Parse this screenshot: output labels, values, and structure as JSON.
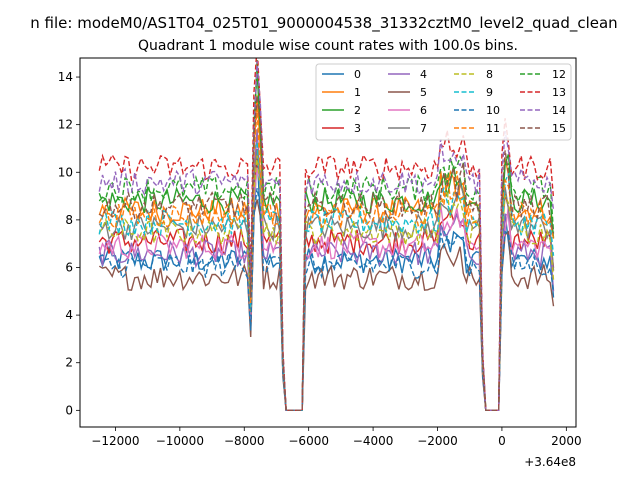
{
  "chart_data": {
    "type": "line",
    "suptitle": "n file: modeM0/AS1T04_025T01_9000004538_31332cztM0_level2_quad_clean",
    "title": "Quadrant 1 module wise count rates with 100.0s bins.",
    "xlabel": "",
    "ylabel": "",
    "x_offset_label": "+3.64e8",
    "xlim": [
      -13100,
      2300
    ],
    "ylim": [
      -0.7,
      14.8
    ],
    "x_ticks": [
      -12000,
      -10000,
      -8000,
      -6000,
      -4000,
      -2000,
      0,
      2000
    ],
    "x_tick_labels": [
      "−12000",
      "−10000",
      "−8000",
      "−6000",
      "−4000",
      "−2000",
      "0",
      "2000"
    ],
    "y_ticks": [
      0,
      2,
      4,
      6,
      8,
      10,
      12,
      14
    ],
    "y_tick_labels": [
      "0",
      "2",
      "4",
      "6",
      "8",
      "10",
      "12",
      "14"
    ],
    "bin_width_s": 100,
    "x_start": -12500,
    "x_end": 1600,
    "gaps": [
      [
        -6700,
        -6200
      ],
      [
        -500,
        -100
      ]
    ],
    "spike_x": [
      -7700,
      -7500
    ],
    "legend_position": "top-right",
    "legend_columns": 4,
    "series": [
      {
        "name": "0",
        "color": "#1f77b4",
        "style": "solid",
        "level": 6.3
      },
      {
        "name": "1",
        "color": "#ff7f0e",
        "style": "solid",
        "level": 8.4
      },
      {
        "name": "2",
        "color": "#2ca02c",
        "style": "solid",
        "level": 8.8
      },
      {
        "name": "3",
        "color": "#d62728",
        "style": "solid",
        "level": 7.1
      },
      {
        "name": "4",
        "color": "#9467bd",
        "style": "solid",
        "level": 6.6
      },
      {
        "name": "5",
        "color": "#8c564b",
        "style": "solid",
        "level": 5.6
      },
      {
        "name": "6",
        "color": "#e377c2",
        "style": "solid",
        "level": 6.9
      },
      {
        "name": "7",
        "color": "#7f7f7f",
        "style": "solid",
        "level": 7.7
      },
      {
        "name": "8",
        "color": "#bcbd22",
        "style": "dashed",
        "level": 7.5
      },
      {
        "name": "9",
        "color": "#17becf",
        "style": "dashed",
        "level": 7.9
      },
      {
        "name": "10",
        "color": "#1f77b4",
        "style": "dashed",
        "level": 6.1
      },
      {
        "name": "11",
        "color": "#ff7f0e",
        "style": "dashed",
        "level": 8.2
      },
      {
        "name": "12",
        "color": "#2ca02c",
        "style": "dashed",
        "level": 9.3
      },
      {
        "name": "13",
        "color": "#d62728",
        "style": "dashed",
        "level": 10.2
      },
      {
        "name": "14",
        "color": "#9467bd",
        "style": "dashed",
        "level": 9.6
      },
      {
        "name": "15",
        "color": "#8c564b",
        "style": "dashed",
        "level": 8.6
      }
    ]
  }
}
